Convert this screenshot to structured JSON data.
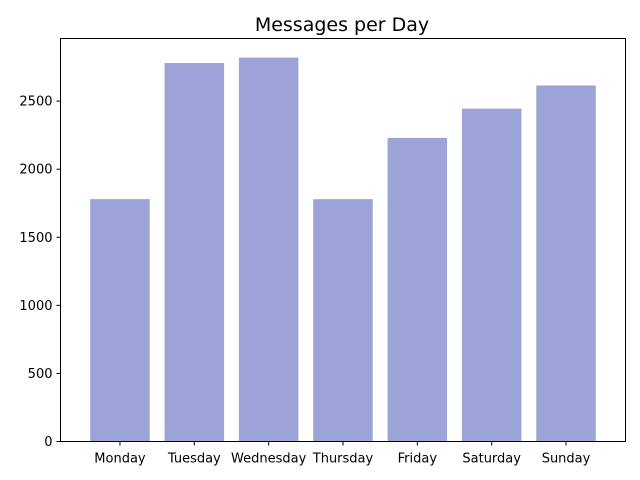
{
  "chart_data": {
    "type": "bar",
    "title": "Messages per Day",
    "xlabel": "",
    "ylabel": "",
    "categories": [
      "Monday",
      "Tuesday",
      "Wednesday",
      "Thursday",
      "Friday",
      "Saturday",
      "Sunday"
    ],
    "values": [
      1780,
      2780,
      2820,
      1780,
      2230,
      2445,
      2615
    ],
    "ylim": [
      0,
      2960
    ],
    "yticks": [
      0,
      500,
      1000,
      1500,
      2000,
      2500
    ],
    "grid": false,
    "colors": {
      "bar": "#9ca3d7",
      "axis": "#000000",
      "background": "#ffffff"
    }
  }
}
